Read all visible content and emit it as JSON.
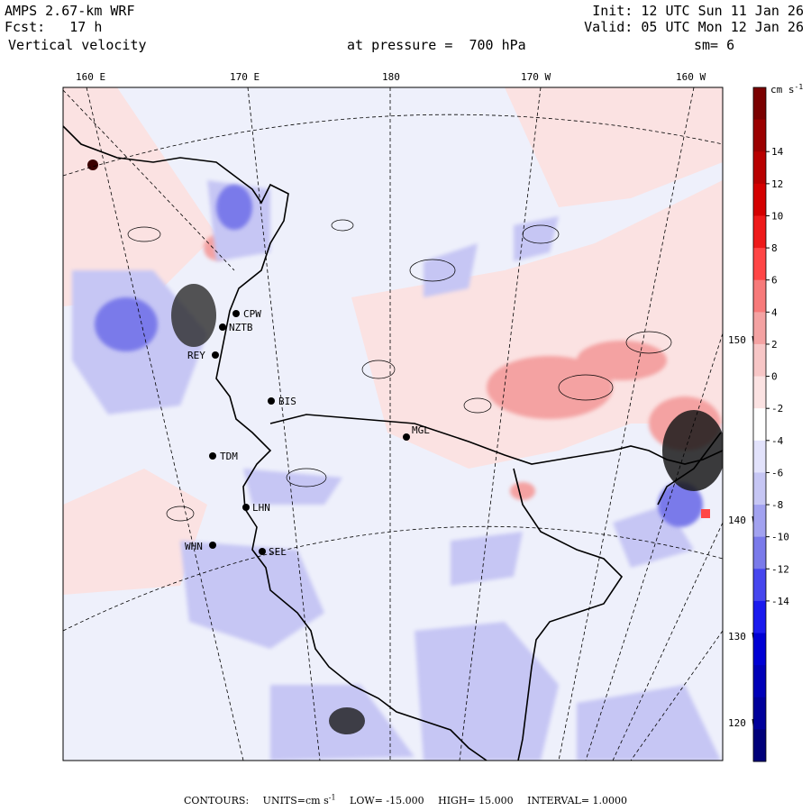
{
  "header": {
    "model": "AMPS 2.67-km WRF",
    "fcst": "Fcst:   17 h",
    "field": "Vertical velocity",
    "init": "Init: 12 UTC Sun 11 Jan 26",
    "valid": "Valid: 05 UTC Mon 12 Jan 26",
    "pressure": "at pressure =  700 hPa",
    "smooth": "sm= 6"
  },
  "top_longitudes": [
    "160 E",
    "170 E",
    "180",
    "170 W",
    "160 W"
  ],
  "right_latitudes": [
    "150 W",
    "140 W",
    "130 W",
    "120 W"
  ],
  "colorbar": {
    "units": "cm s",
    "units_exp": "-1",
    "ticks": [
      "14",
      "12",
      "10",
      "8",
      "6",
      "4",
      "2",
      "0",
      "-2",
      "-4",
      "-6",
      "-8",
      "-10",
      "-12",
      "-14"
    ],
    "colors": [
      "#7a0000",
      "#9b0000",
      "#b80000",
      "#d40000",
      "#ee1a1a",
      "#ff4646",
      "#f77a7a",
      "#f4a2a2",
      "#f7c6c6",
      "#fbe2e2",
      "#ffffff",
      "#e2e2fb",
      "#c6c6f4",
      "#a2a2f0",
      "#7a7aea",
      "#4646ee",
      "#1a1aee",
      "#0000d4",
      "#0000b8",
      "#00009b",
      "#00007a"
    ]
  },
  "stations": [
    {
      "code": "CPW"
    },
    {
      "code": "NZTB"
    },
    {
      "code": "REY"
    },
    {
      "code": "BIS"
    },
    {
      "code": "MGL"
    },
    {
      "code": "TDM"
    },
    {
      "code": "LHN"
    },
    {
      "code": "WHN"
    },
    {
      "code": "SEL"
    }
  ],
  "footer": {
    "contours": "CONTOURS:",
    "units_label": "UNITS=cm s",
    "units_exp": "-1",
    "low": "LOW= -15.000",
    "high": "HIGH= 15.000",
    "interval": "INTERVAL=  1.0000"
  }
}
